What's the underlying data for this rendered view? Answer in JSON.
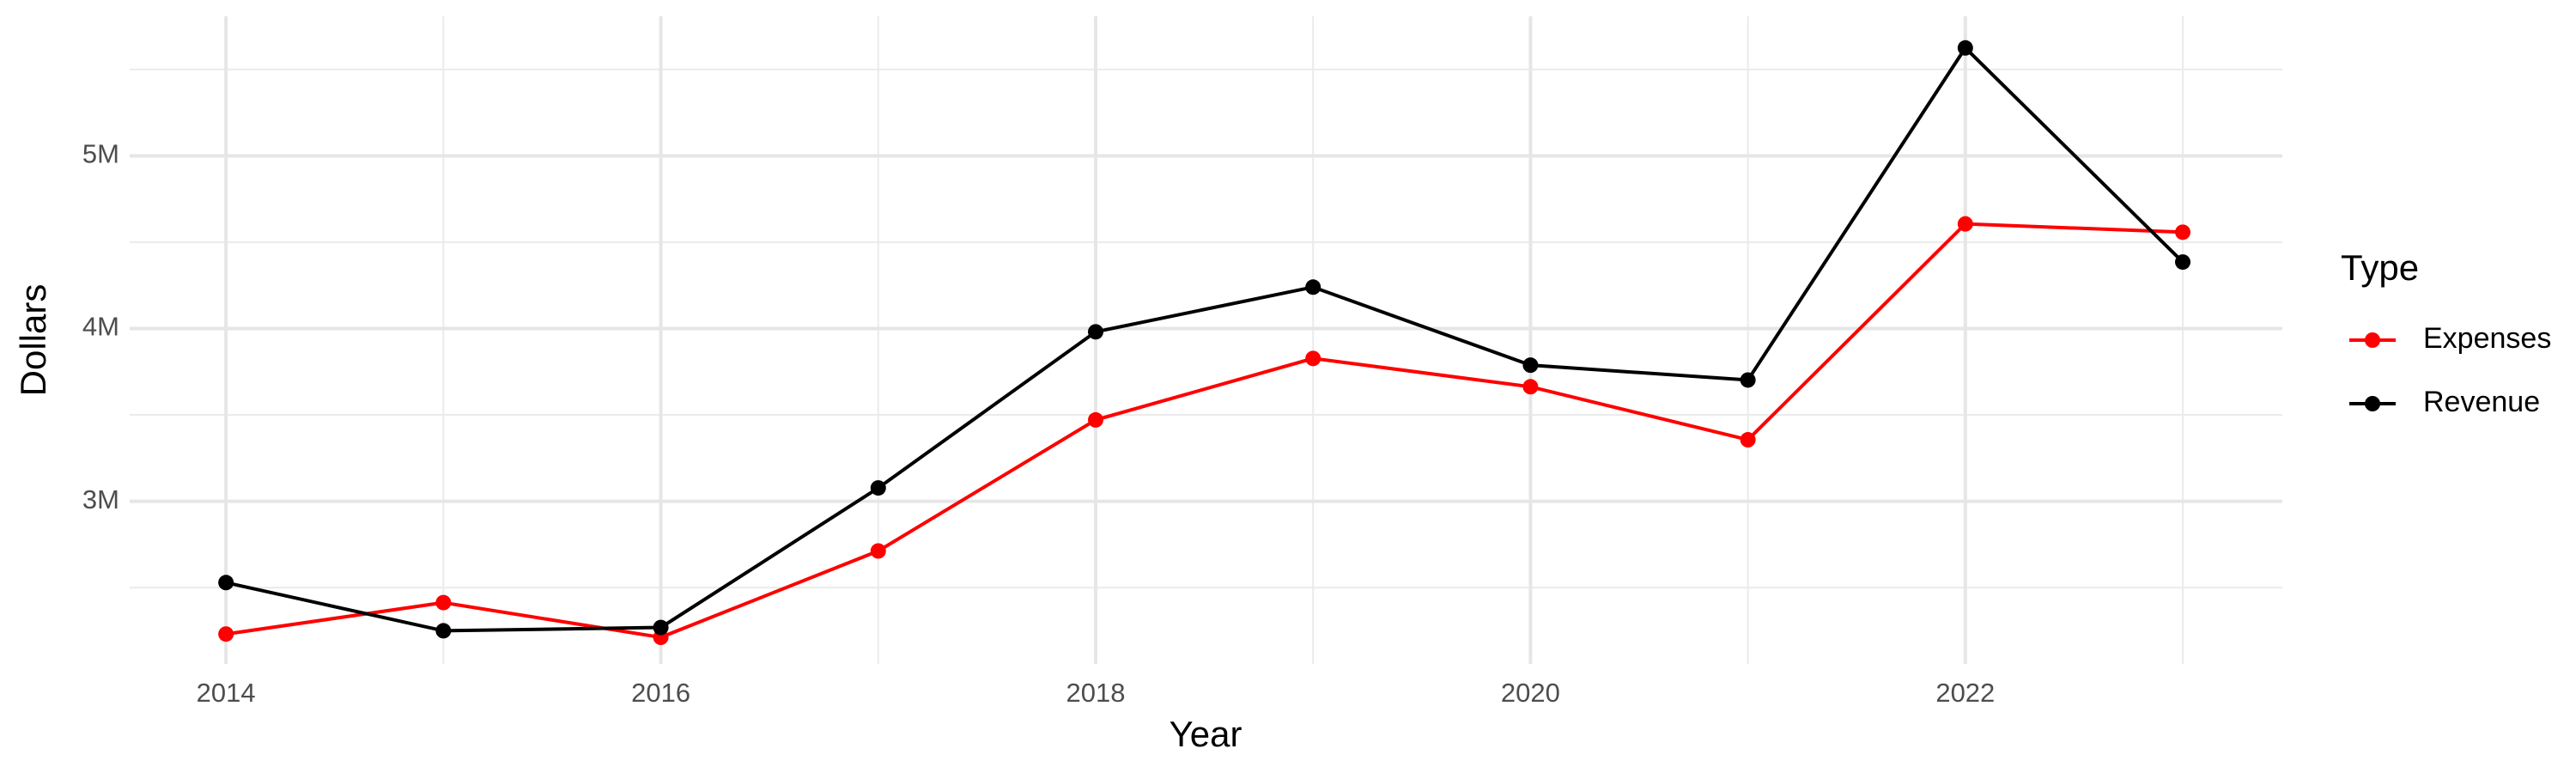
{
  "chart_data": {
    "type": "line",
    "x_label": "Year",
    "y_label": "Dollars",
    "legend_title": "Type",
    "x": [
      2014,
      2015,
      2016,
      2017,
      2018,
      2019,
      2020,
      2021,
      2022,
      2023
    ],
    "series": [
      {
        "name": "Expenses",
        "color": "#ff0000",
        "values": [
          2231000,
          2413000,
          2212000,
          2712000,
          3471000,
          3827000,
          3663000,
          3356000,
          4606000,
          4558000
        ]
      },
      {
        "name": "Revenue",
        "color": "#000000",
        "values": [
          2529000,
          2250000,
          2269000,
          3077000,
          3981000,
          4240000,
          3788000,
          3702000,
          5625000,
          4385000
        ]
      }
    ],
    "xlim": [
      2013.557,
      2023.458
    ],
    "xticks": [
      2014,
      2016,
      2018,
      2020,
      2022
    ],
    "x_minor_grid": [
      2015,
      2017,
      2019,
      2021,
      2023
    ],
    "ylim": [
      2058000,
      5808000
    ],
    "yticks": [
      {
        "value": 3000000,
        "label": "3M"
      },
      {
        "value": 4000000,
        "label": "4M"
      },
      {
        "value": 5000000,
        "label": "5M"
      }
    ],
    "y_minor_grid": [
      2500000,
      3500000,
      4500000,
      5500000
    ],
    "grid": true,
    "legend": "right"
  }
}
